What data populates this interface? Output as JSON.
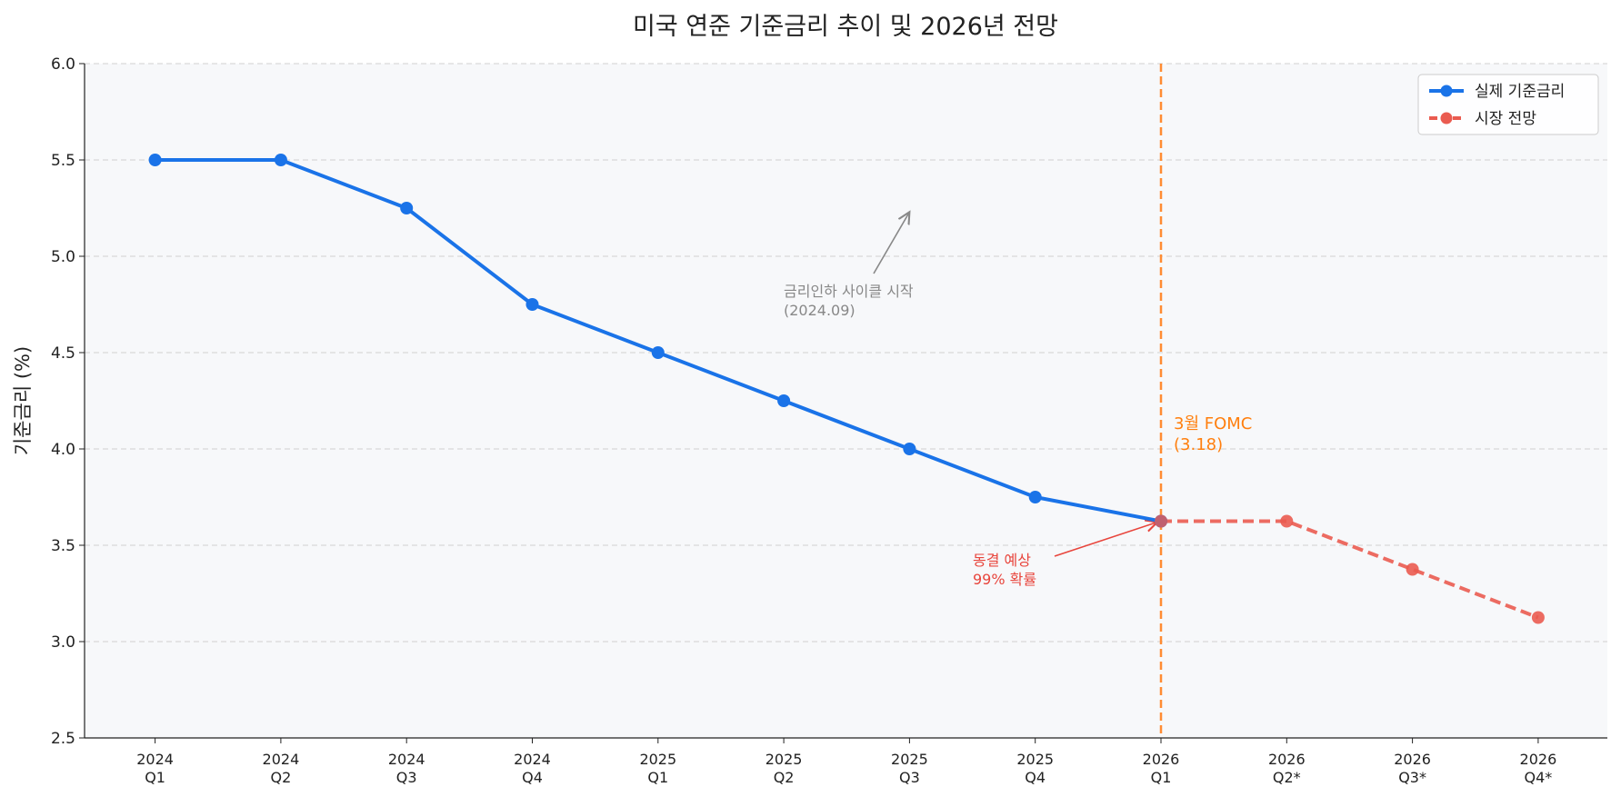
{
  "chart_data": {
    "type": "line",
    "title": "미국 연준 기준금리 추이 및 2026년 전망",
    "ylabel": "기준금리 (%)",
    "xlabel": "",
    "ylim": [
      2.5,
      6.0
    ],
    "yticks": [
      "2.5",
      "3.0",
      "3.5",
      "4.0",
      "4.5",
      "5.0",
      "5.5",
      "6.0"
    ],
    "grid": "horizontal dashed",
    "legend_position": "top-right",
    "categories": [
      [
        "2024",
        "Q1"
      ],
      [
        "2024",
        "Q2"
      ],
      [
        "2024",
        "Q3"
      ],
      [
        "2024",
        "Q4"
      ],
      [
        "2025",
        "Q1"
      ],
      [
        "2025",
        "Q2"
      ],
      [
        "2025",
        "Q3"
      ],
      [
        "2025",
        "Q4"
      ],
      [
        "2026",
        "Q1"
      ],
      [
        "2026",
        "Q2*"
      ],
      [
        "2026",
        "Q3*"
      ],
      [
        "2026",
        "Q4*"
      ]
    ],
    "series": [
      {
        "name": "실제 기준금리",
        "color": "#1a73e8",
        "style": "solid",
        "x": [
          0,
          1,
          2,
          3,
          4,
          5,
          6,
          7,
          8
        ],
        "values": [
          5.5,
          5.5,
          5.25,
          4.75,
          4.5,
          4.25,
          4.0,
          3.75,
          3.625
        ]
      },
      {
        "name": "시장 전망",
        "color": "#ea5b50",
        "style": "dashed",
        "x": [
          8,
          9,
          10,
          11
        ],
        "values": [
          3.625,
          3.625,
          3.375,
          3.125
        ]
      }
    ],
    "vline": {
      "x": 8,
      "color": "#ff8c33",
      "label": [
        "3월 FOMC",
        "(3.18)"
      ]
    },
    "annotations": [
      {
        "text": [
          "금리인하 사이클 시작",
          "(2024.09)"
        ],
        "color": "#888888"
      },
      {
        "text": [
          "동결 예상",
          "99% 확률"
        ],
        "color": "#e8453c"
      }
    ]
  }
}
